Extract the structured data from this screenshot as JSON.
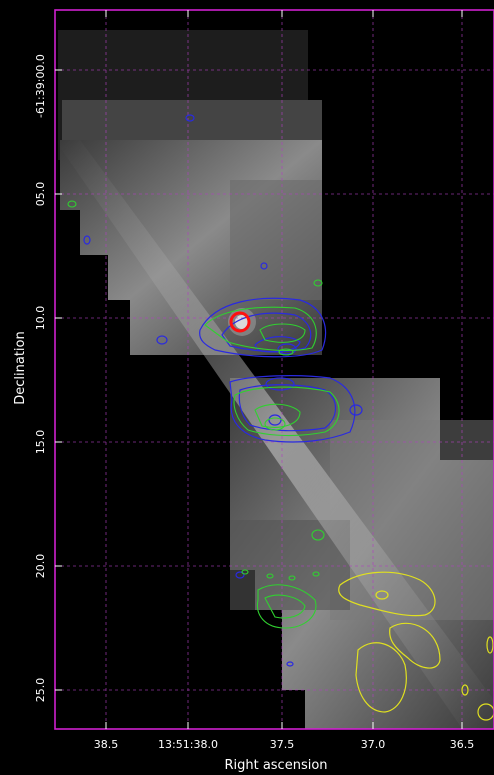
{
  "axes": {
    "xlabel": "Right ascension",
    "ylabel": "Declination",
    "x_ticks": [
      "38.5",
      "13:51:38.0",
      "37.5",
      "37.0",
      "36.5"
    ],
    "y_ticks": [
      "-61:39:00.0",
      "05.0",
      "10.0",
      "15.0",
      "20.0",
      "25.0"
    ]
  },
  "colors": {
    "frame": "#d020d0",
    "grid": "#b040c0",
    "contour_blue": "#2a2ae0",
    "contour_green": "#30d030",
    "contour_yellow": "#e0e020",
    "marker": "#ff1010"
  },
  "marker": {
    "shape": "circle",
    "icon": "red-circle-marker"
  }
}
